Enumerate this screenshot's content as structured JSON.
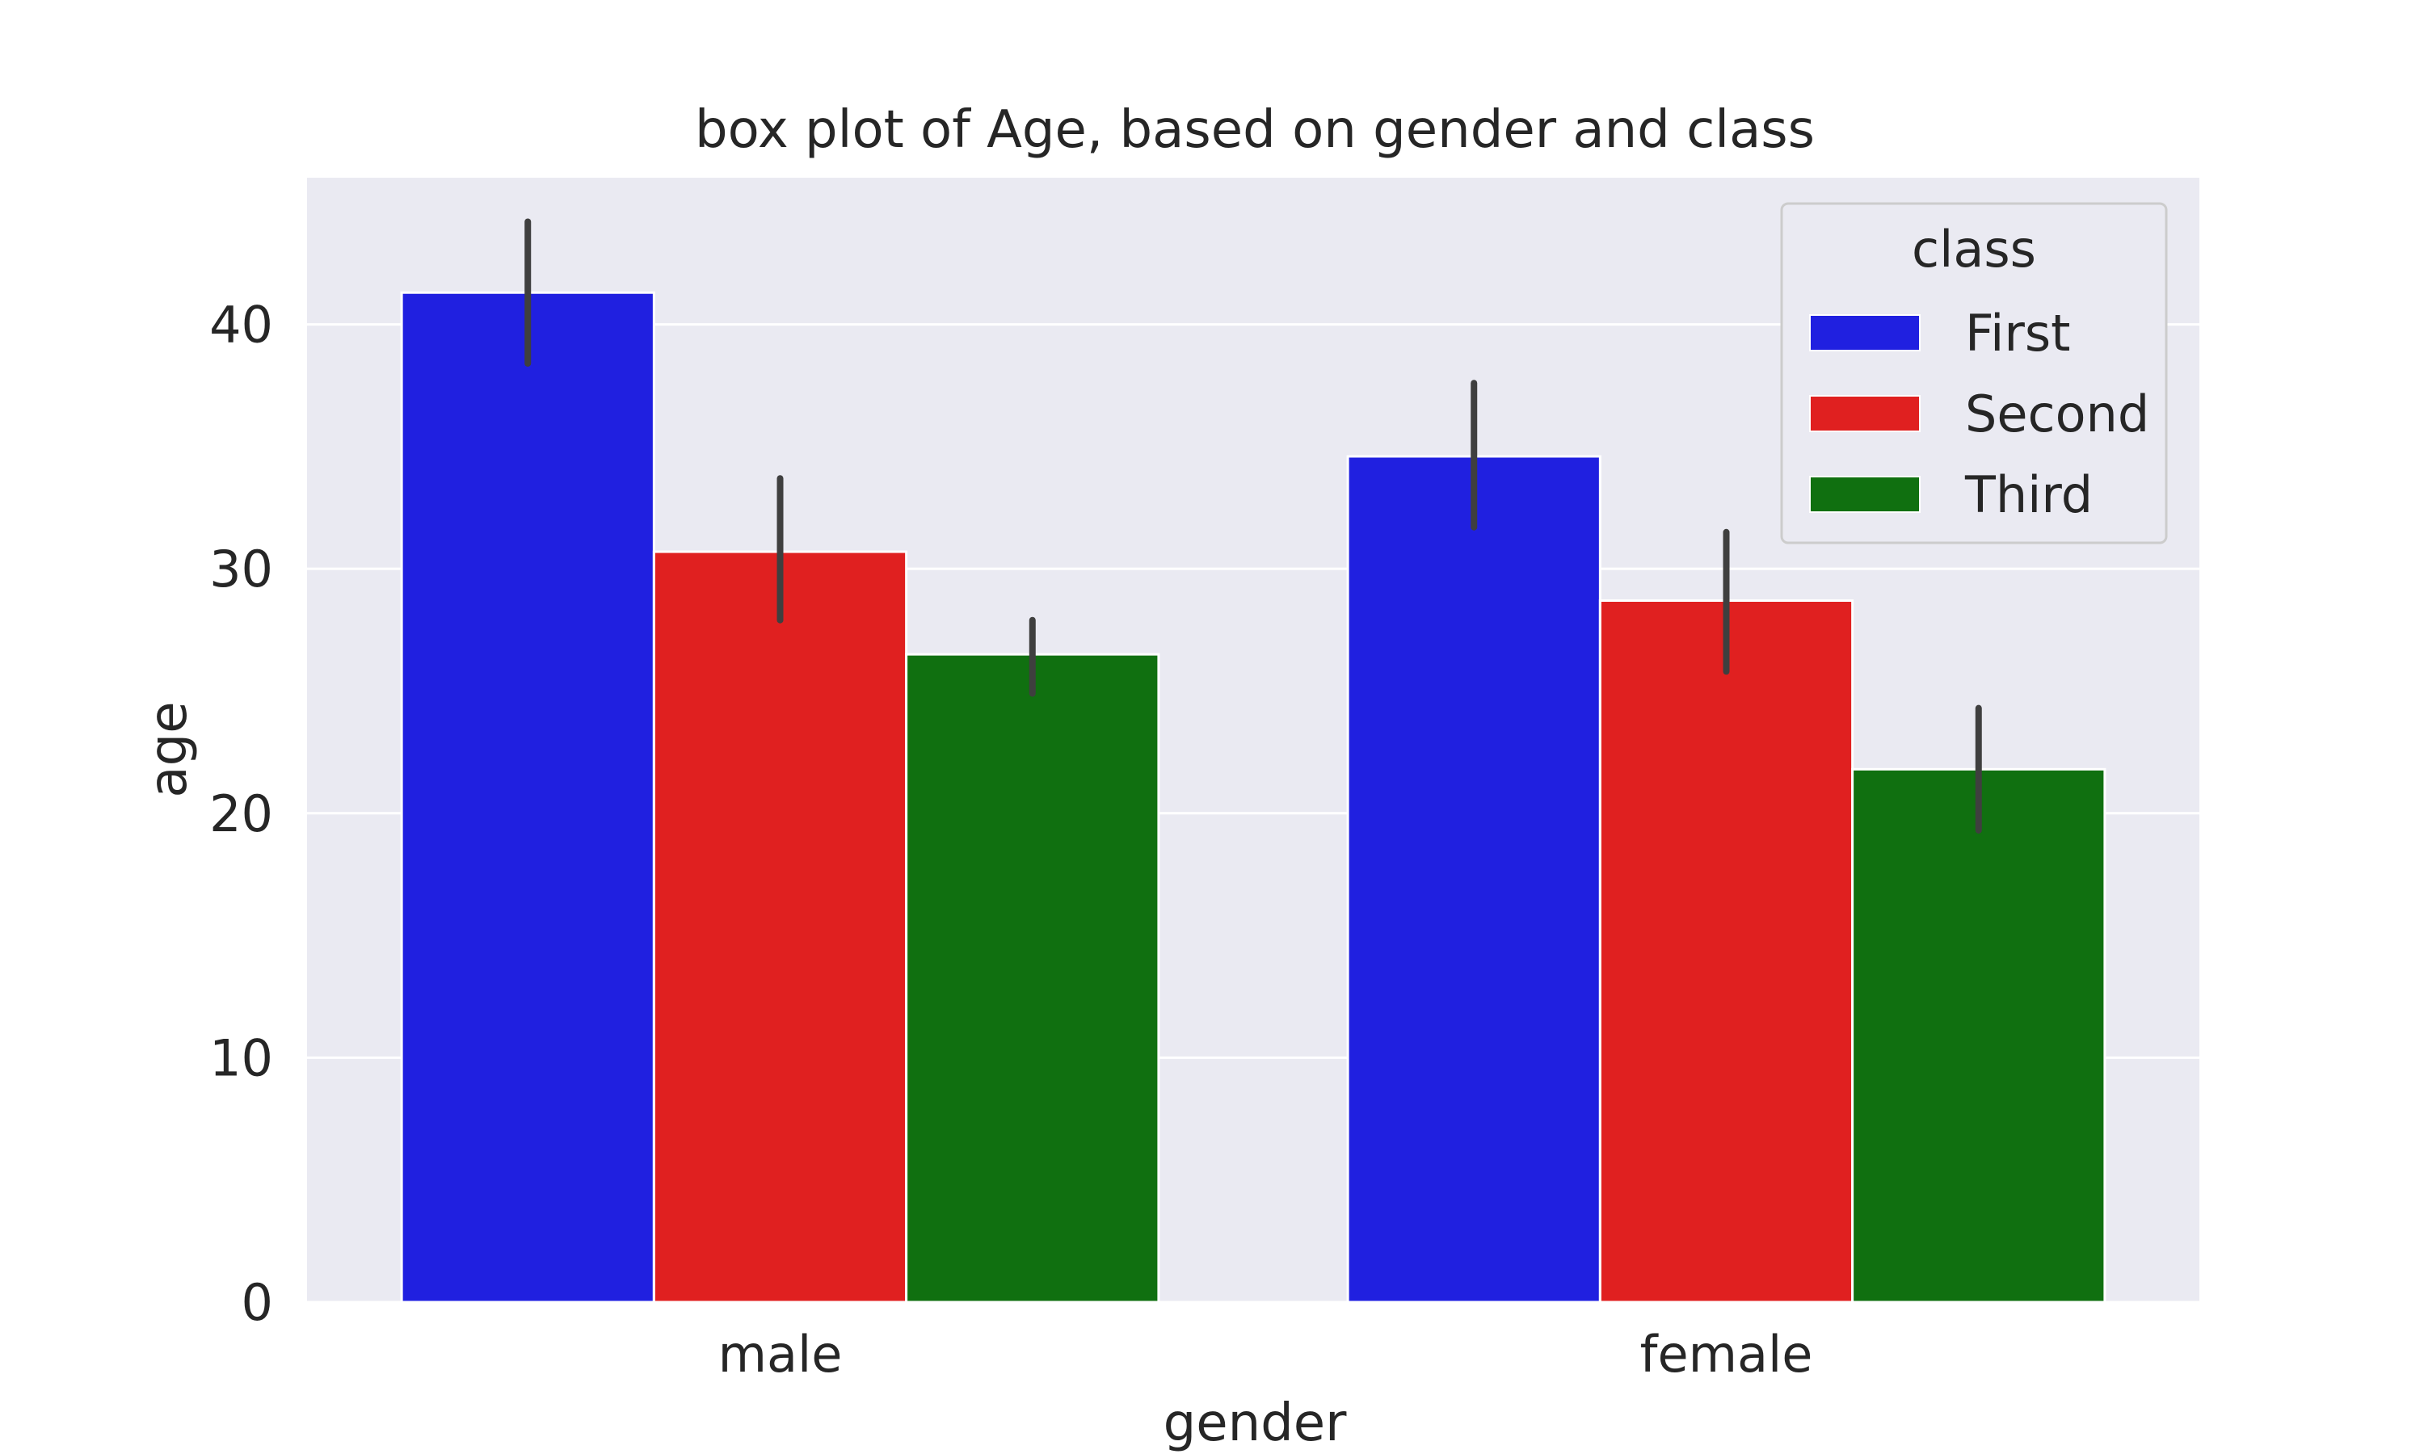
{
  "chart_data": {
    "type": "bar",
    "title": "box plot of Age, based on gender and class",
    "xlabel": "gender",
    "ylabel": "age",
    "categories": [
      "male",
      "female"
    ],
    "ylim": [
      0,
      46
    ],
    "yticks": [
      0,
      10,
      20,
      30,
      40
    ],
    "grid": true,
    "legend": {
      "title": "class",
      "position": "top-right"
    },
    "series": [
      {
        "name": "First",
        "color": "#2020e0",
        "values": [
          41.3,
          34.6
        ],
        "ci_low": [
          38.4,
          31.7
        ],
        "ci_high": [
          44.2,
          37.6
        ]
      },
      {
        "name": "Second",
        "color": "#e02020",
        "values": [
          30.7,
          28.7
        ],
        "ci_low": [
          27.9,
          25.8
        ],
        "ci_high": [
          33.7,
          31.5
        ]
      },
      {
        "name": "Third",
        "color": "#107010",
        "values": [
          26.5,
          21.8
        ],
        "ci_low": [
          24.9,
          19.3
        ],
        "ci_high": [
          27.9,
          24.3
        ]
      }
    ],
    "colors": {
      "background": "#eaeaf2",
      "grid": "#ffffff",
      "errorbar": "#3f3f3f"
    }
  }
}
